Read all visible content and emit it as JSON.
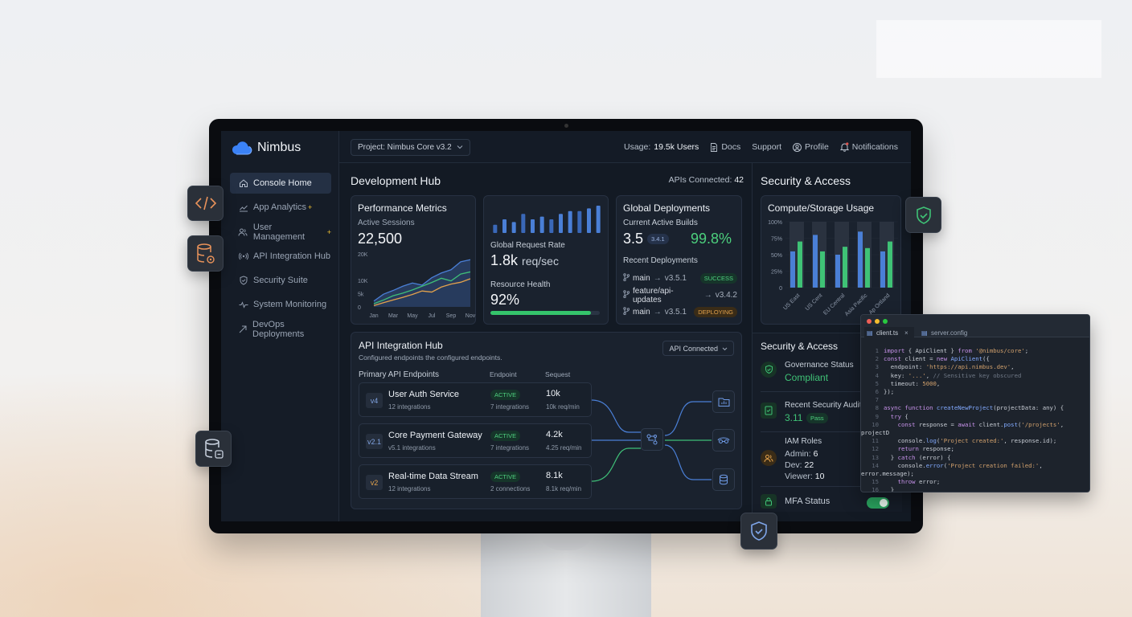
{
  "sidebar": {
    "brand": "Nimbus",
    "items": [
      {
        "label": "Console Home",
        "icon": "home-icon",
        "plus": false
      },
      {
        "label": "App Analytics",
        "icon": "chart-icon",
        "plus": true
      },
      {
        "label": "User Management",
        "icon": "users-icon",
        "plus": true
      },
      {
        "label": "API Integration Hub",
        "icon": "api-icon",
        "plus": false
      },
      {
        "label": "Security Suite",
        "icon": "shield-icon",
        "plus": false
      },
      {
        "label": "System Monitoring",
        "icon": "pulse-icon",
        "plus": false
      },
      {
        "label": "DevOps Deployments",
        "icon": "arrow-icon",
        "plus": false
      }
    ],
    "plus_symbol": "+"
  },
  "topbar": {
    "project": "Project: Nimbus Core v3.2",
    "usage_label": "Usage:",
    "usage_value": "19.5k Users",
    "docs": "Docs",
    "support": "Support",
    "profile": "Profile",
    "notifications": "Notifications"
  },
  "dev": {
    "title": "Development Hub",
    "apis_label": "APIs Connected:",
    "apis_value": "42"
  },
  "perf": {
    "title": "Performance Metrics",
    "sessions_label": "Active Sessions",
    "sessions_value": "22,500",
    "yticks": [
      "20K",
      "10K",
      "5k",
      "0"
    ],
    "xticks": [
      "Jan",
      "Mar",
      "May",
      "Jul",
      "Sep",
      "Nov"
    ]
  },
  "rate": {
    "label": "Global Request Rate",
    "value": "1.8k",
    "unit": "req/sec",
    "health_label": "Resource Health",
    "health_value": "92%",
    "health_fraction": 0.92
  },
  "deploy": {
    "title": "Global Deployments",
    "builds_label": "Current Active Builds",
    "builds_value": "3.5",
    "version_badge": "3.4.1",
    "percent": "99.8%",
    "recent_label": "Recent Deployments",
    "rows": [
      {
        "branch": "main",
        "target": "v3.5.1",
        "status": "SUCCESS",
        "kind": "green"
      },
      {
        "branch": "feature/api-updates",
        "target": "v3.4.2",
        "status": "",
        "kind": ""
      },
      {
        "branch": "main",
        "target": "v3.5.1",
        "status": "DEPLOYING",
        "kind": "amber"
      }
    ]
  },
  "api": {
    "title": "API Integration Hub",
    "subtitle": "Configured endpoints the configured endpoints.",
    "dropdown": "API Connected",
    "col_primary": "Primary API Endpoints",
    "col_endpoint": "Endpoint",
    "col_sequest": "Sequest",
    "endpoints": [
      {
        "ver": "v4",
        "name": "User Auth Service",
        "sub": "12 integrations",
        "status": "ACTIVE",
        "count": "7 integrations",
        "req": "10k",
        "rate": "10k req/min"
      },
      {
        "ver": "v2.1",
        "name": "Core Payment Gateway",
        "sub": "v5.1 integrations",
        "status": "ACTIVE",
        "count": "7 integrations",
        "req": "4.2k",
        "rate": "4.25 req/min"
      },
      {
        "ver": "v2",
        "name": "Real-time Data Stream",
        "sub": "12 integrations",
        "status": "ACTIVE",
        "count": "2 connections",
        "req": "8.1k",
        "rate": "8.1k req/min"
      }
    ]
  },
  "sec": {
    "title": "Security & Access",
    "usage_title": "Compute/Storage Usage",
    "yticks": [
      "100%",
      "75%",
      "50%",
      "25%",
      "0"
    ],
    "regions": [
      "US East",
      "US Cent",
      "EU Central",
      "Asia Pacific",
      "Ap Ortland"
    ],
    "access_title": "Security & Access",
    "gov_label": "Governance Status",
    "gov_value": "Compliant",
    "audit_label": "Recent Security Audit",
    "audit_value": "3.11",
    "audit_pass": "Pass",
    "iam_label": "IAM Roles",
    "admin_label": "Admin:",
    "admin_value": "6",
    "dev_label": "Dev:",
    "dev_value": "22",
    "viewer_label": "Viewer:",
    "viewer_value": "10",
    "mfa_label": "MFA Status"
  },
  "code": {
    "tab1": "client.ts",
    "tab2": "server.config",
    "close": "×"
  },
  "chart_data": [
    {
      "type": "area",
      "title": "Performance Metrics",
      "x": [
        "Jan",
        "Feb",
        "Mar",
        "Apr",
        "May",
        "Jun",
        "Jul",
        "Aug",
        "Sep",
        "Oct",
        "Nov"
      ],
      "ylim": [
        0,
        20000
      ],
      "series": [
        {
          "values": [
            2200,
            4800,
            6200,
            7800,
            9000,
            8200,
            11000,
            12800,
            14000,
            17000,
            17800
          ]
        },
        {
          "values": [
            1200,
            2600,
            4200,
            5200,
            6400,
            7800,
            9200,
            10800,
            9800,
            12400,
            13200
          ]
        },
        {
          "values": [
            500,
            1600,
            2600,
            3600,
            4700,
            6000,
            5600,
            7500,
            8600,
            9300,
            10600
          ]
        }
      ]
    },
    {
      "type": "bar",
      "title": "Global Request Rate",
      "values": [
        3,
        5,
        4,
        7,
        5,
        6,
        5,
        7,
        8,
        8,
        9,
        10
      ]
    },
    {
      "type": "bar",
      "title": "Compute/Storage Usage",
      "categories": [
        "US East",
        "US Cent",
        "EU Central",
        "Asia Pacific",
        "Ap Ortland"
      ],
      "ylim": [
        0,
        100
      ],
      "series": [
        {
          "values": [
            55,
            80,
            50,
            85,
            55
          ]
        },
        {
          "values": [
            70,
            55,
            62,
            60,
            70
          ]
        }
      ]
    }
  ]
}
